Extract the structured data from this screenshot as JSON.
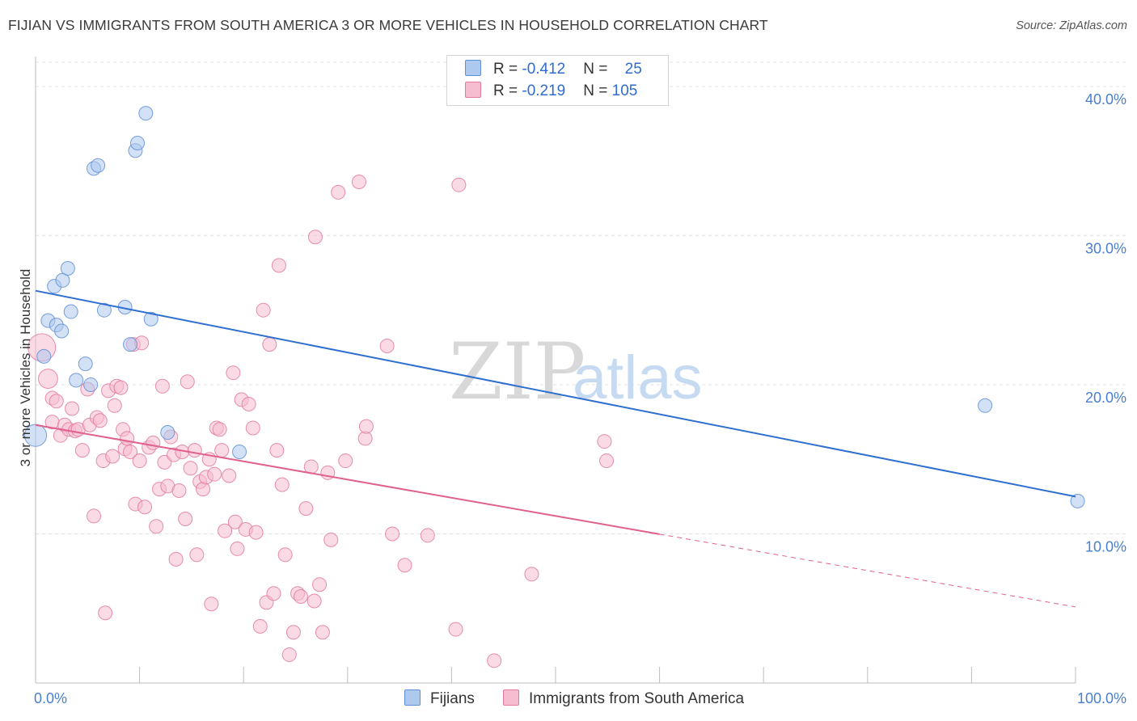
{
  "title": "FIJIAN VS IMMIGRANTS FROM SOUTH AMERICA 3 OR MORE VEHICLES IN HOUSEHOLD CORRELATION CHART",
  "source": "Source: ZipAtlas.com",
  "watermark": {
    "zip": "ZIP",
    "atlas": "atlas"
  },
  "legend": {
    "rows": [
      {
        "r_label": "R = ",
        "r_value": "-0.412",
        "n_label": "N = ",
        "n_value": "25"
      },
      {
        "r_label": "R = ",
        "r_value": "-0.219",
        "n_label": "N = ",
        "n_value": "105"
      }
    ]
  },
  "colors": {
    "fijians_fill": "#adc9ee",
    "fijians_stroke": "#5f8fd6",
    "fijians_line": "#2f6fd0",
    "sa_fill": "#f6bcd0",
    "sa_stroke": "#e27aa0",
    "sa_line": "#e0608e",
    "grid": "#e2e2e2",
    "axis_text": "#4a7fd0"
  },
  "chart_data": {
    "type": "scatter",
    "title": "FIJIAN VS IMMIGRANTS FROM SOUTH AMERICA 3 OR MORE VEHICLES IN HOUSEHOLD CORRELATION CHART",
    "xlabel": "",
    "ylabel": "3 or more Vehicles in Household",
    "xlim": [
      0,
      100
    ],
    "ylim": [
      0,
      42
    ],
    "x_tick_labels": [
      "0.0%",
      "100.0%"
    ],
    "y_ticks": [
      10,
      20,
      30,
      40
    ],
    "y_tick_labels": [
      "10.0%",
      "20.0%",
      "30.0%",
      "40.0%"
    ],
    "grid": true,
    "legend_position": "top-center",
    "series": [
      {
        "name": "Fijians",
        "r": -0.412,
        "n": 25,
        "trend": {
          "x": [
            0,
            100
          ],
          "y": [
            26.3,
            12.5
          ],
          "dashed_from": null
        },
        "points": [
          [
            0.0,
            16.6,
            1.6
          ],
          [
            0.8,
            21.9,
            1
          ],
          [
            1.2,
            24.3,
            1
          ],
          [
            1.8,
            26.6,
            1
          ],
          [
            2.0,
            24.0,
            1
          ],
          [
            2.5,
            23.6,
            1
          ],
          [
            2.6,
            27.0,
            1
          ],
          [
            3.1,
            27.8,
            1
          ],
          [
            3.4,
            24.9,
            1
          ],
          [
            3.9,
            20.3,
            1
          ],
          [
            4.8,
            21.4,
            1
          ],
          [
            5.3,
            20.0,
            1
          ],
          [
            5.6,
            34.5,
            1
          ],
          [
            6.0,
            34.7,
            1
          ],
          [
            6.6,
            25.0,
            1
          ],
          [
            8.6,
            25.2,
            1
          ],
          [
            9.1,
            22.7,
            1
          ],
          [
            9.6,
            35.7,
            1
          ],
          [
            9.8,
            36.2,
            1
          ],
          [
            10.6,
            38.2,
            1
          ],
          [
            11.1,
            24.4,
            1
          ],
          [
            12.7,
            16.8,
            1
          ],
          [
            19.6,
            15.5,
            1
          ],
          [
            91.3,
            18.6,
            1
          ],
          [
            100.2,
            12.2,
            1
          ]
        ]
      },
      {
        "name": "Immigrants from South America",
        "r": -0.219,
        "n": 105,
        "trend": {
          "x": [
            0,
            100
          ],
          "y": [
            17.3,
            5.1
          ],
          "dashed_from": 60
        },
        "points": [
          [
            0.6,
            22.5,
            2.0
          ],
          [
            1.2,
            20.4,
            1.4
          ],
          [
            1.6,
            19.1,
            1
          ],
          [
            1.6,
            17.5,
            1
          ],
          [
            2.0,
            18.9,
            1
          ],
          [
            2.4,
            16.6,
            1
          ],
          [
            2.8,
            17.3,
            1
          ],
          [
            3.2,
            17.0,
            1
          ],
          [
            3.5,
            18.4,
            1
          ],
          [
            3.8,
            16.9,
            1
          ],
          [
            4.1,
            17.0,
            1
          ],
          [
            4.5,
            15.6,
            1
          ],
          [
            5.0,
            19.7,
            1
          ],
          [
            5.2,
            17.3,
            1
          ],
          [
            5.6,
            11.2,
            1
          ],
          [
            5.9,
            17.8,
            1
          ],
          [
            6.2,
            17.6,
            1
          ],
          [
            6.5,
            14.9,
            1
          ],
          [
            6.7,
            4.7,
            1
          ],
          [
            7.0,
            19.6,
            1
          ],
          [
            7.4,
            15.2,
            1
          ],
          [
            7.6,
            18.6,
            1
          ],
          [
            7.8,
            19.9,
            1
          ],
          [
            8.2,
            19.8,
            1
          ],
          [
            8.4,
            17.0,
            1
          ],
          [
            8.6,
            15.7,
            1
          ],
          [
            8.8,
            16.4,
            1
          ],
          [
            9.1,
            15.5,
            1
          ],
          [
            9.4,
            22.7,
            1
          ],
          [
            9.6,
            12.0,
            1
          ],
          [
            10.0,
            14.9,
            1
          ],
          [
            10.2,
            22.8,
            1
          ],
          [
            10.5,
            11.8,
            1
          ],
          [
            10.9,
            15.8,
            1
          ],
          [
            11.3,
            16.1,
            1
          ],
          [
            11.6,
            10.5,
            1
          ],
          [
            11.9,
            13.0,
            1
          ],
          [
            12.2,
            19.9,
            1
          ],
          [
            12.4,
            14.8,
            1
          ],
          [
            12.7,
            13.2,
            1
          ],
          [
            13.0,
            16.5,
            1
          ],
          [
            13.3,
            15.3,
            1
          ],
          [
            13.5,
            8.3,
            1
          ],
          [
            13.8,
            12.9,
            1
          ],
          [
            14.1,
            15.5,
            1
          ],
          [
            14.4,
            11.0,
            1
          ],
          [
            14.6,
            20.2,
            1
          ],
          [
            14.9,
            14.4,
            1
          ],
          [
            15.3,
            15.6,
            1
          ],
          [
            15.5,
            8.6,
            1
          ],
          [
            15.8,
            13.5,
            1
          ],
          [
            16.1,
            13.0,
            1
          ],
          [
            16.4,
            13.8,
            1
          ],
          [
            16.7,
            15.0,
            1
          ],
          [
            16.9,
            5.3,
            1
          ],
          [
            17.2,
            14.0,
            1
          ],
          [
            17.4,
            17.1,
            1
          ],
          [
            17.7,
            17.0,
            1
          ],
          [
            17.9,
            15.6,
            1
          ],
          [
            18.2,
            10.2,
            1
          ],
          [
            18.6,
            13.9,
            1
          ],
          [
            19.0,
            20.8,
            1
          ],
          [
            19.2,
            10.8,
            1
          ],
          [
            19.4,
            9.0,
            1
          ],
          [
            19.8,
            19.0,
            1
          ],
          [
            20.2,
            10.3,
            1
          ],
          [
            20.5,
            18.7,
            1
          ],
          [
            20.9,
            17.1,
            1
          ],
          [
            21.2,
            10.1,
            1
          ],
          [
            21.6,
            3.8,
            1
          ],
          [
            21.9,
            25.0,
            1
          ],
          [
            22.2,
            5.4,
            1
          ],
          [
            22.5,
            22.7,
            1
          ],
          [
            22.9,
            6.0,
            1
          ],
          [
            23.2,
            15.6,
            1
          ],
          [
            23.4,
            28.0,
            1
          ],
          [
            23.7,
            13.3,
            1
          ],
          [
            24.0,
            8.6,
            1
          ],
          [
            24.4,
            1.9,
            1
          ],
          [
            24.8,
            3.4,
            1
          ],
          [
            25.2,
            6.0,
            1
          ],
          [
            25.5,
            5.8,
            1
          ],
          [
            26.0,
            11.7,
            1
          ],
          [
            26.5,
            14.5,
            1
          ],
          [
            26.8,
            5.5,
            1
          ],
          [
            26.9,
            29.9,
            1
          ],
          [
            27.3,
            6.6,
            1
          ],
          [
            27.6,
            3.4,
            1
          ],
          [
            28.1,
            14.1,
            1
          ],
          [
            28.4,
            9.6,
            1
          ],
          [
            29.1,
            32.9,
            1
          ],
          [
            29.8,
            14.9,
            1
          ],
          [
            31.1,
            33.6,
            1
          ],
          [
            31.7,
            16.4,
            1
          ],
          [
            31.8,
            17.2,
            1
          ],
          [
            33.8,
            22.6,
            1
          ],
          [
            34.3,
            10.0,
            1
          ],
          [
            35.5,
            7.9,
            1
          ],
          [
            37.7,
            9.9,
            1
          ],
          [
            40.4,
            3.6,
            1
          ],
          [
            40.7,
            33.4,
            1
          ],
          [
            44.1,
            1.5,
            1
          ],
          [
            47.7,
            7.3,
            1
          ],
          [
            54.7,
            16.2,
            1
          ],
          [
            54.9,
            14.9,
            1
          ]
        ]
      }
    ]
  },
  "bottom_legend": [
    "Fijians",
    "Immigrants from South America"
  ]
}
